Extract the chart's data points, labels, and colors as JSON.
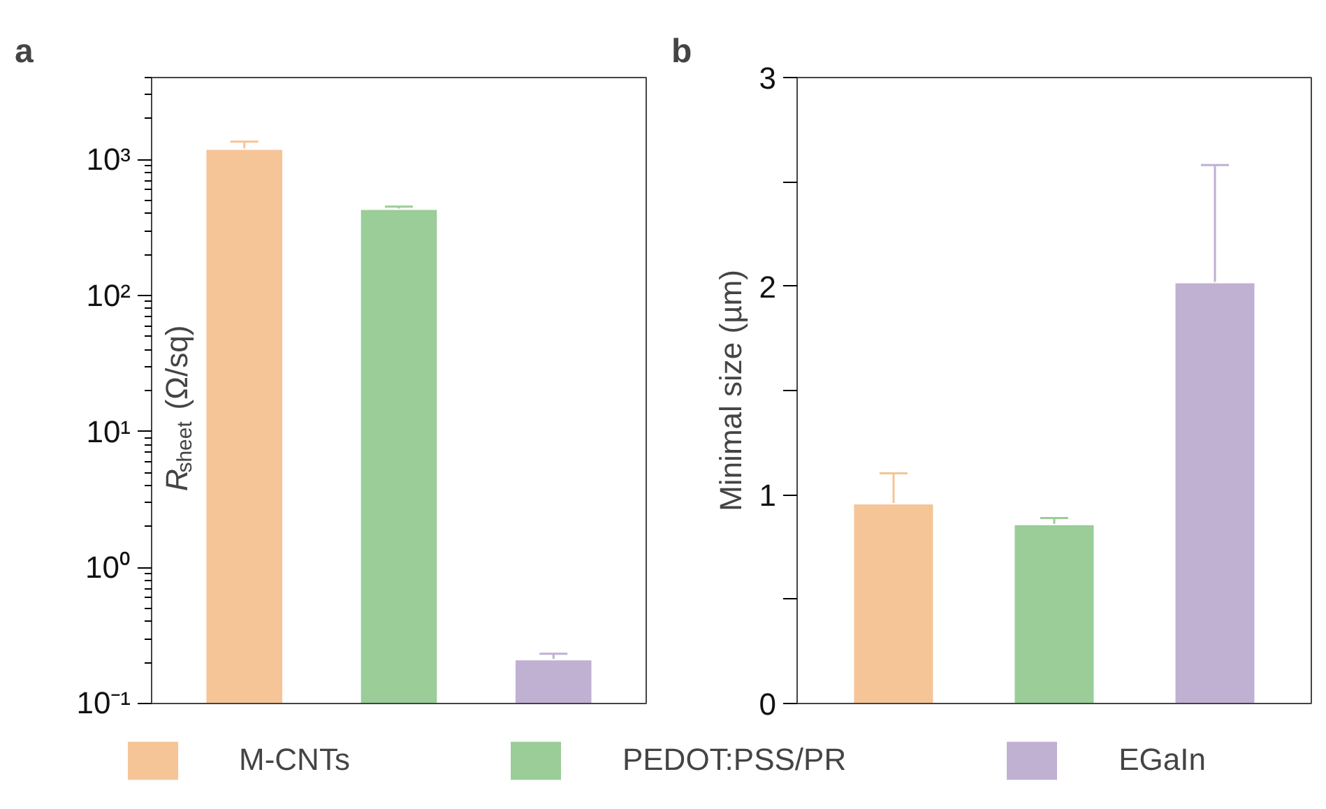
{
  "chart_data": [
    {
      "type": "bar",
      "title": "a",
      "ylabel": "R$_{sheet}$ (Ω/sq)",
      "categories": [
        null,
        null,
        null
      ],
      "log": "y",
      "ylim": [
        0.1,
        4000
      ],
      "yticks": [
        {
          "value": 0.1,
          "label": "10⁻¹"
        },
        {
          "value": 1,
          "label": "10⁰"
        },
        {
          "value": 10,
          "label": "10¹"
        },
        {
          "value": 100,
          "label": "10²"
        },
        {
          "value": 1000,
          "label": "10³"
        }
      ],
      "tick_labels": "y",
      "legend": "bottom",
      "series": [
        {
          "name": "M-CNTs",
          "color": "#f5c497",
          "values": [
            1190,
            null,
            null
          ],
          "errors": [
            [
              1190,
              1350
            ],
            null,
            null
          ]
        },
        {
          "name": "PEDOT:PSS/PR",
          "color": "#9acd98",
          "values": [
            null,
            430,
            null
          ],
          "errors": [
            null,
            [
              430,
              450
            ],
            null
          ]
        },
        {
          "name": "EGaIn",
          "color": "#c0b0d2",
          "values": [
            null,
            null,
            0.21
          ],
          "errors": [
            null,
            null,
            [
              0.21,
              0.232
            ]
          ]
        }
      ]
    },
    {
      "type": "bar",
      "title": "b",
      "ylabel": "Minimal size (µm)",
      "categories": [
        null,
        null,
        null
      ],
      "ylim": [
        0,
        3
      ],
      "yticks": [
        0,
        {
          "value": 0.5,
          "label": null
        },
        1,
        {
          "value": 1.5,
          "label": null
        },
        2,
        {
          "value": 2.5,
          "label": null
        },
        3
      ],
      "tick_labels": "y",
      "series": [
        {
          "color": "#f5c497",
          "values": [
            0.958,
            null,
            null
          ],
          "errors": [
            [
              0.958,
              1.103
            ],
            null,
            null
          ]
        },
        {
          "color": "#9acd98",
          "values": [
            null,
            0.858,
            null
          ],
          "errors": [
            null,
            [
              0.858,
              0.889
            ],
            null
          ]
        },
        {
          "color": "#c0b0d2",
          "values": [
            null,
            null,
            2.017
          ],
          "errors": [
            null,
            null,
            [
              2.017,
              2.581
            ]
          ]
        }
      ]
    }
  ]
}
